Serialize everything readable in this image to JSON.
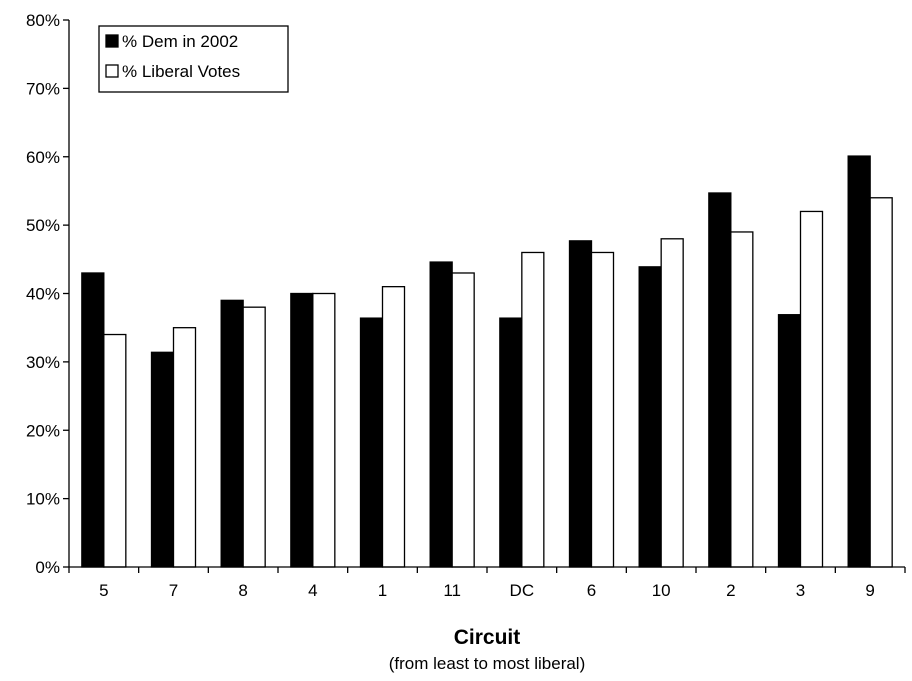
{
  "chart_data": {
    "type": "bar",
    "categories": [
      "5",
      "7",
      "8",
      "4",
      "1",
      "11",
      "DC",
      "6",
      "10",
      "2",
      "3",
      "9"
    ],
    "series": [
      {
        "name": "% Dem in 2002",
        "color": "#000000",
        "values": [
          43,
          31.4,
          39,
          40,
          36.4,
          44.6,
          36.4,
          47.7,
          43.9,
          54.7,
          36.9,
          60.1
        ]
      },
      {
        "name": "% Liberal Votes",
        "color": "#ffffff",
        "values": [
          34,
          35,
          38,
          40,
          41,
          43,
          46,
          46,
          48,
          49,
          52,
          54
        ]
      }
    ],
    "ylim": [
      0,
      80
    ],
    "yticks": [
      "0%",
      "10%",
      "20%",
      "30%",
      "40%",
      "50%",
      "60%",
      "70%",
      "80%"
    ],
    "xlabel": "Circuit",
    "xlabel_sub": "(from least to most liberal)",
    "ylabel": "",
    "legend_position": "top-left",
    "grid": false
  }
}
